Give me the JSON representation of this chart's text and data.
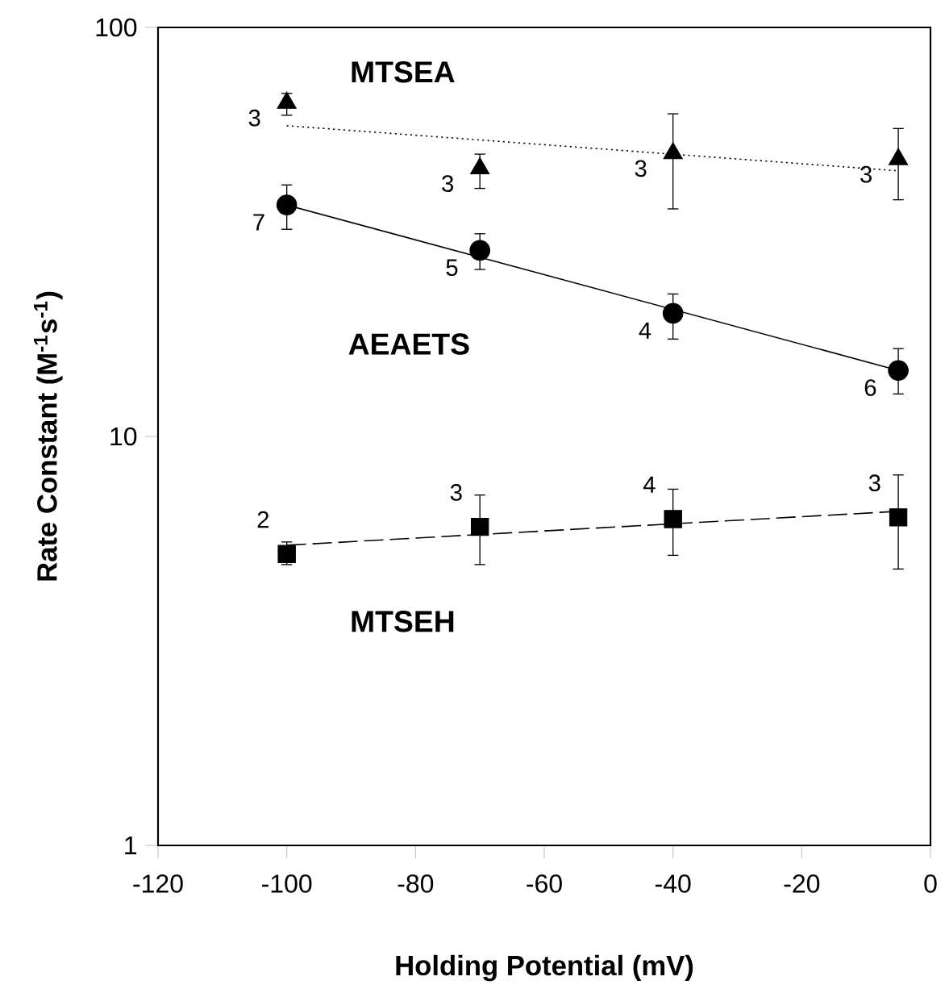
{
  "chart_data": {
    "type": "scatter",
    "xlabel": "Holding Potential  (mV)",
    "ylabel": "Rate Constant  (M$^{-1}$s$^{-1}$)",
    "log": "y",
    "grid": false,
    "xlim": [
      -120,
      0
    ],
    "ylim": [
      1,
      100
    ],
    "xticks": [
      -120,
      -100,
      -80,
      -60,
      -40,
      -20,
      0
    ],
    "yticks": [
      1,
      10,
      100
    ],
    "series": [
      {
        "name": "MTSEA",
        "marker": "triangle",
        "color": "#000000",
        "x": [
          -100,
          -70,
          -40,
          -5
        ],
        "values": [
          65.4,
          45.2,
          49.2,
          47.6
        ],
        "errors": [
          [
            61,
            69
          ],
          [
            40.4,
            49
          ],
          [
            36,
            61.5
          ],
          [
            37.9,
            56.6
          ]
        ]
      },
      {
        "name": "AEAETS",
        "marker": "circle",
        "color": "#000000",
        "x": [
          -100,
          -70,
          -40,
          -5
        ],
        "values": [
          36.8,
          28.5,
          20.0,
          14.5
        ],
        "errors": [
          [
            32.1,
            41.2
          ],
          [
            25.6,
            31.3
          ],
          [
            17.3,
            22.3
          ],
          [
            12.7,
            16.4
          ]
        ]
      },
      {
        "name": "MTSEH",
        "marker": "square",
        "color": "#000000",
        "x": [
          -100,
          -70,
          -40,
          -5
        ],
        "values": [
          5.16,
          6.01,
          6.28,
          6.34
        ],
        "errors": [
          [
            4.86,
            5.52
          ],
          [
            4.86,
            7.19
          ],
          [
            5.12,
            7.43
          ],
          [
            4.74,
            8.05
          ]
        ]
      },
      {
        "type": "line",
        "marker": "none",
        "line_style": "dotted",
        "color": "#000000",
        "x": [
          -100,
          -5
        ],
        "values": [
          57.5,
          44.6
        ]
      },
      {
        "type": "line",
        "marker": "none",
        "line_style": "solid",
        "color": "#000000",
        "x": [
          -100,
          -5
        ],
        "values": [
          36.8,
          14.5
        ]
      },
      {
        "type": "line",
        "marker": "none",
        "line_style": "dashed",
        "color": "#000000",
        "x": [
          -100,
          -5
        ],
        "values": [
          5.42,
          6.56
        ]
      }
    ],
    "annotations": [
      {
        "text": "3",
        "x": -100,
        "y": 65.4
      },
      {
        "text": "3",
        "x": -70,
        "y": 45.2
      },
      {
        "text": "3",
        "x": -40,
        "y": 49.2
      },
      {
        "text": "3",
        "x": -5,
        "y": 47.6
      },
      {
        "text": "7",
        "x": -100,
        "y": 36.8
      },
      {
        "text": "5",
        "x": -70,
        "y": 28.5
      },
      {
        "text": "4",
        "x": -40,
        "y": 20.0
      },
      {
        "text": "6",
        "x": -5,
        "y": 14.5
      },
      {
        "text": "2",
        "x": -100,
        "y": 5.16
      },
      {
        "text": "3",
        "x": -70,
        "y": 6.01
      },
      {
        "text": "4",
        "x": -40,
        "y": 6.28
      },
      {
        "text": "3",
        "x": -5,
        "y": 6.34
      }
    ]
  }
}
